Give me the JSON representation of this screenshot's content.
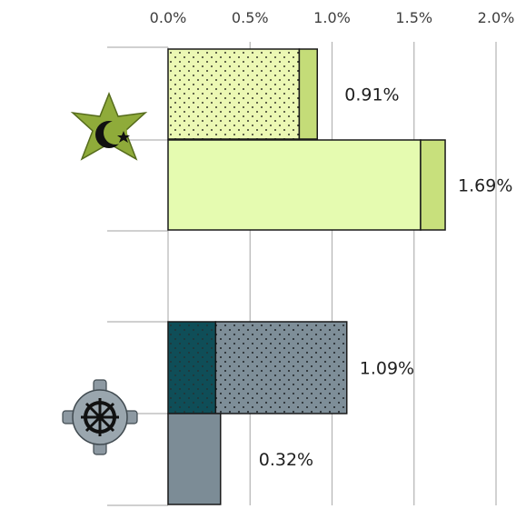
{
  "chart_data": {
    "type": "bar",
    "orientation": "horizontal",
    "stacked": true,
    "xlim": [
      0,
      2.0
    ],
    "x_ticks": [
      "0.0%",
      "0.5%",
      "1.0%",
      "1.5%",
      "2.0%"
    ],
    "grid": true,
    "legend": "none",
    "groups": [
      {
        "icon": "star-crescent-icon",
        "bars": [
          {
            "total": 0.91,
            "label": "0.91%",
            "segments": [
              {
                "value": 0.8,
                "color": "#ecf8b4",
                "pattern": "dots"
              },
              {
                "value": 0.11,
                "color": "#c4dc78",
                "pattern": "none"
              }
            ]
          },
          {
            "total": 1.69,
            "label": "1.69%",
            "segments": [
              {
                "value": 1.54,
                "color": "#e5fbb0",
                "pattern": "none"
              },
              {
                "value": 0.15,
                "color": "#c8e07c",
                "pattern": "none"
              }
            ]
          }
        ]
      },
      {
        "icon": "dharma-wheel-icon",
        "bars": [
          {
            "total": 1.09,
            "label": "1.09%",
            "segments": [
              {
                "value": 0.29,
                "color": "#0f4e58",
                "pattern": "dots"
              },
              {
                "value": 0.8,
                "color": "#7e8e98",
                "pattern": "dots"
              }
            ]
          },
          {
            "total": 0.32,
            "label": "0.32%",
            "segments": [
              {
                "value": 0.32,
                "color": "#7c8c96",
                "pattern": "none"
              }
            ]
          }
        ]
      }
    ]
  }
}
